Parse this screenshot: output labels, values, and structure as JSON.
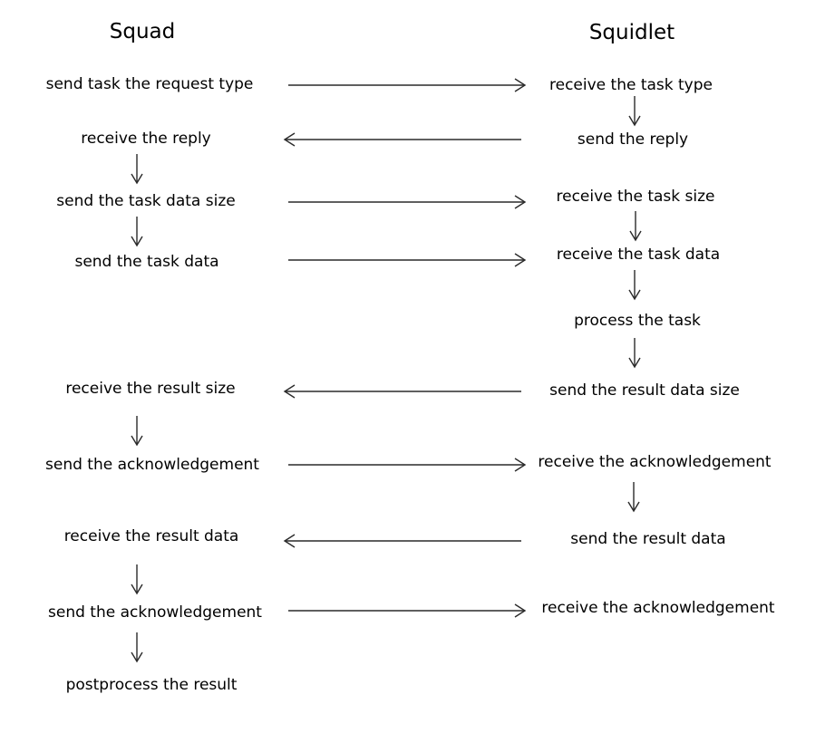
{
  "headers": {
    "squad": "Squad",
    "squidlet": "Squidlet"
  },
  "squad_steps": [
    "send task the request type",
    "receive the reply",
    "send the task data size",
    "send the task data",
    "receive the result size",
    "send the acknowledgement",
    "receive the result data",
    "send the acknowledgement",
    "postprocess the result"
  ],
  "squidlet_steps": [
    "receive the task type",
    "send the reply",
    "receive the task size",
    "receive the task data",
    "process the task",
    "send the result data size",
    "receive the acknowledgement",
    "send the result data",
    "receive the acknowledgement"
  ]
}
